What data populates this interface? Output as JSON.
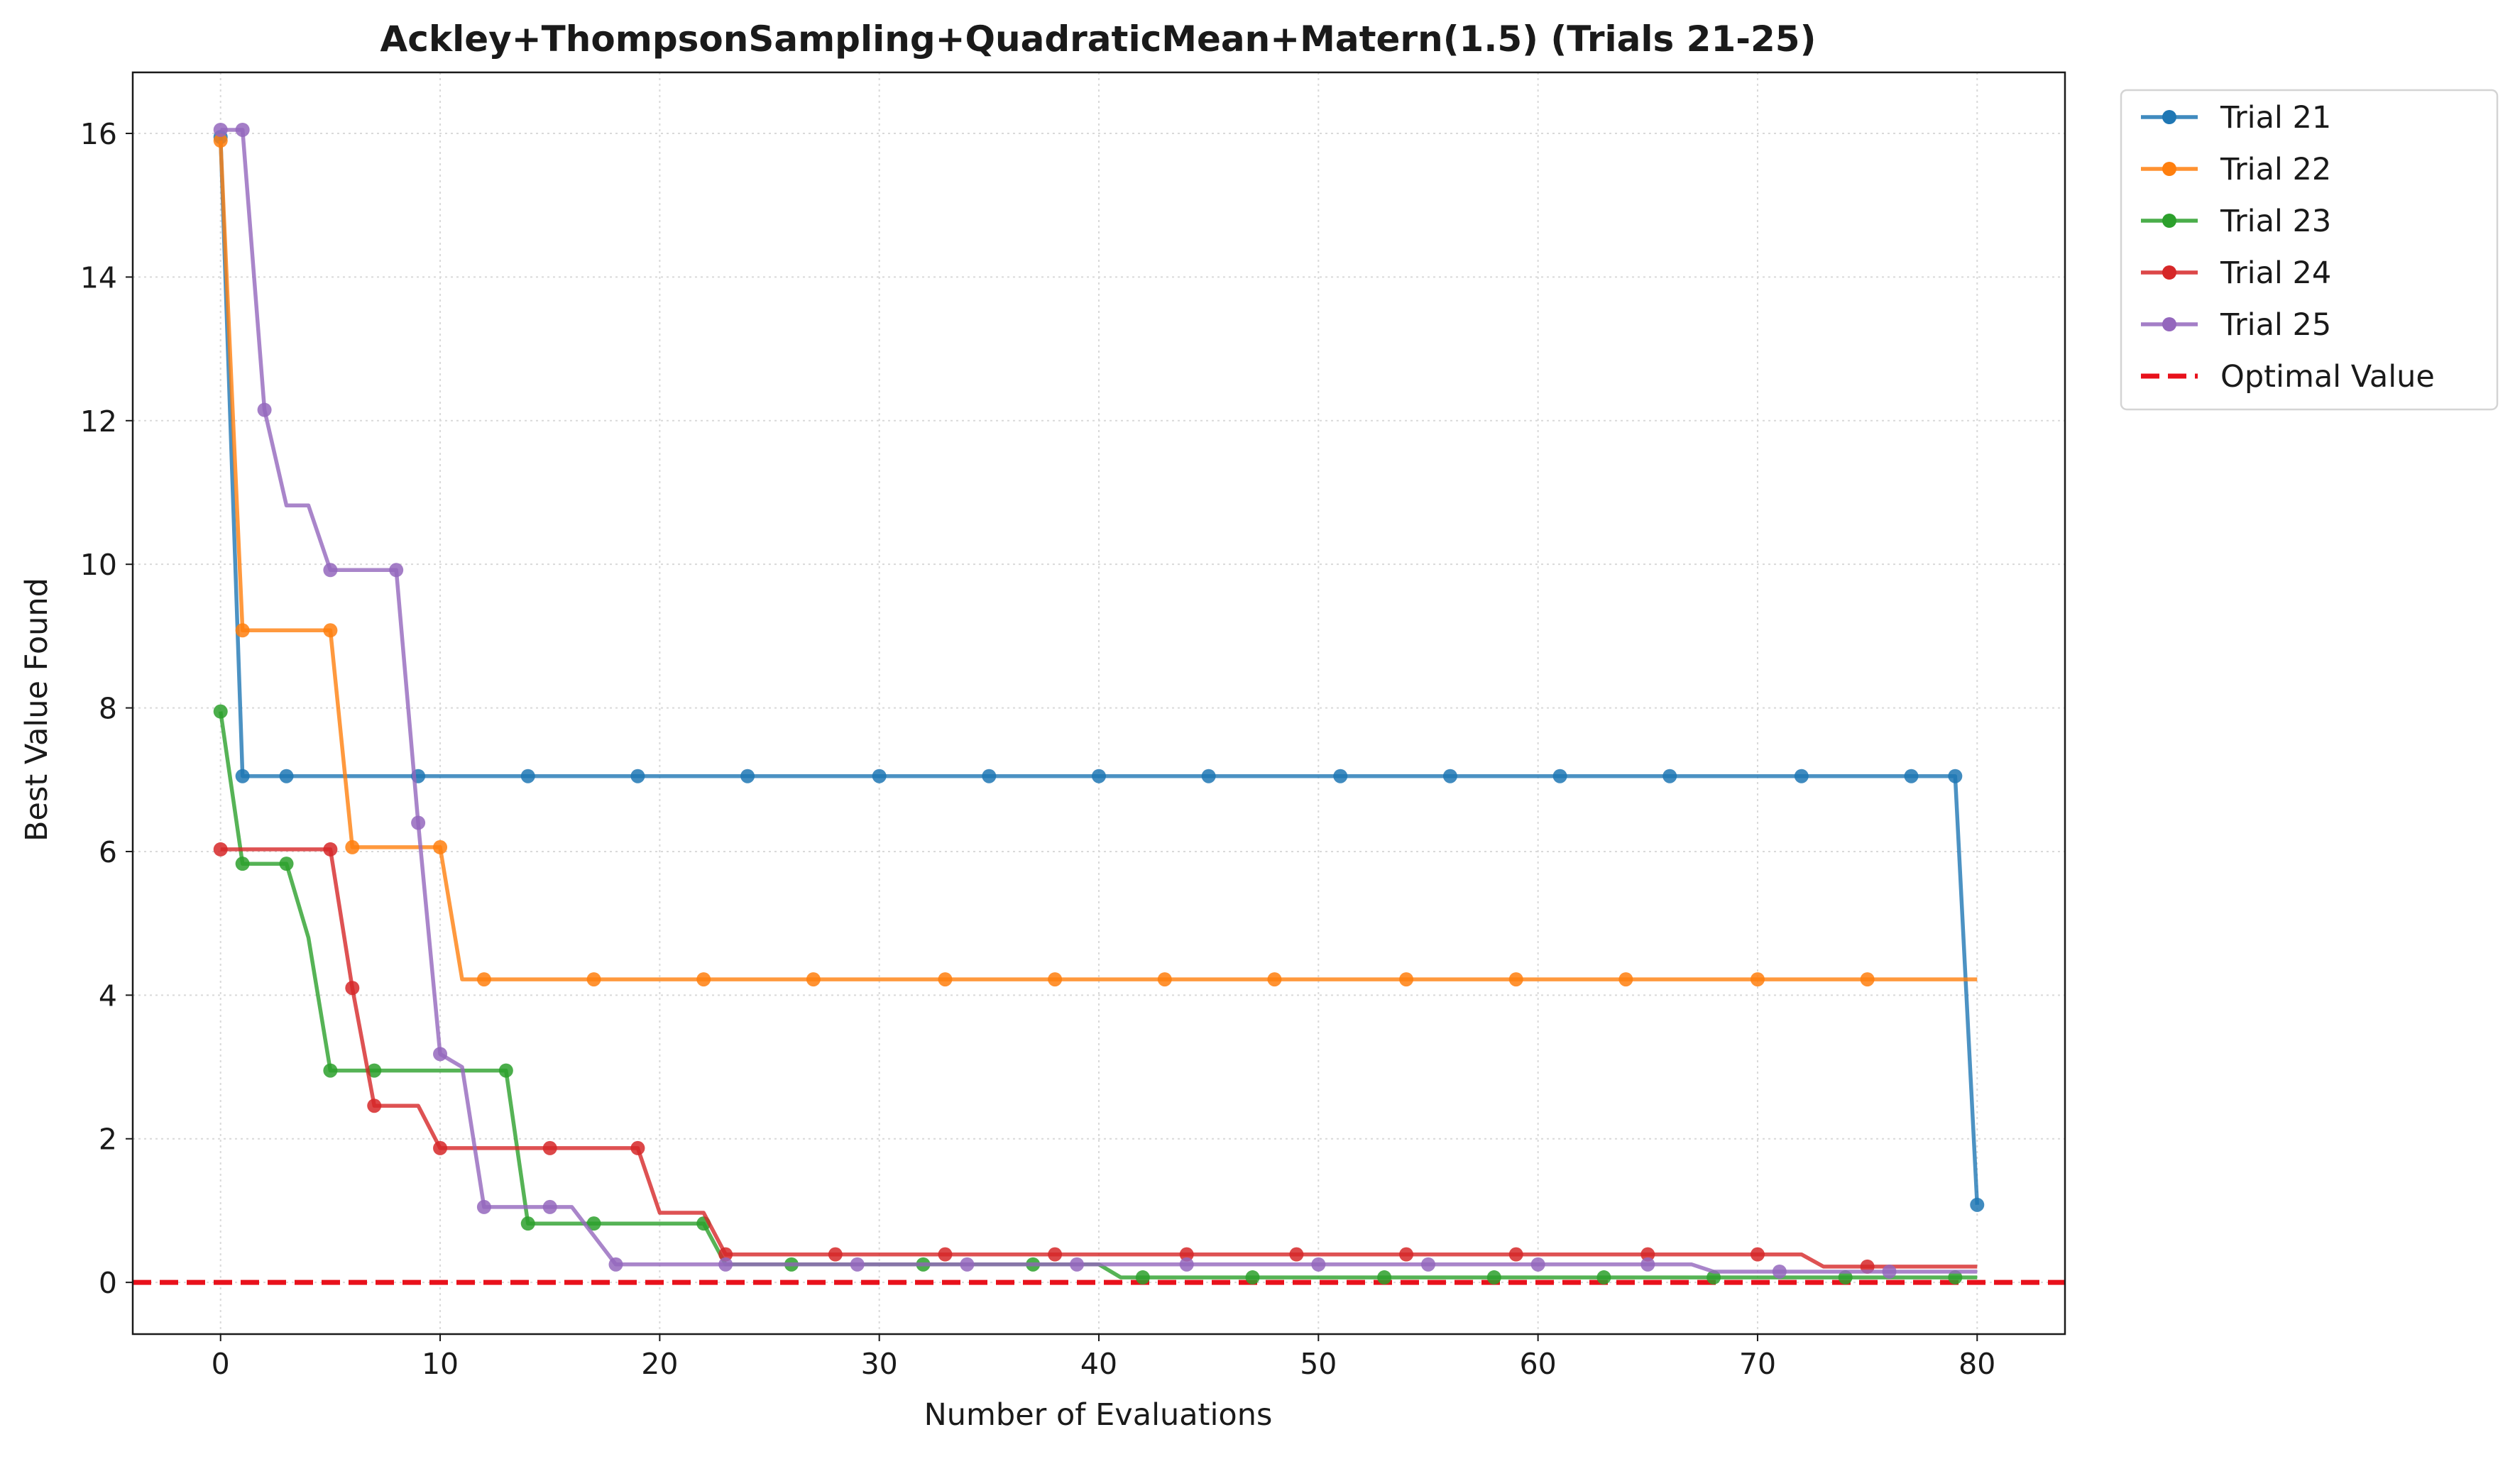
{
  "chart_data": {
    "type": "line",
    "title": "Ackley+ThompsonSampling+QuadraticMean+Matern(1.5) (Trials 21-25)",
    "xlabel": "Number of Evaluations",
    "ylabel": "Best Value Found",
    "xlim": [
      -4,
      84
    ],
    "ylim": [
      -0.72,
      16.85
    ],
    "xticks": [
      0,
      10,
      20,
      30,
      40,
      50,
      60,
      70,
      80
    ],
    "yticks": [
      0,
      2,
      4,
      6,
      8,
      10,
      12,
      14,
      16
    ],
    "grid": true,
    "legend_position": "outside-top-right",
    "reference_line": {
      "name": "Optimal Value",
      "y": 0,
      "color": "#e8111b",
      "style": "dashed"
    },
    "series": [
      {
        "name": "Trial 21",
        "color": "#1f77b4",
        "points": [
          [
            0,
            15.95
          ],
          [
            1,
            7.05
          ],
          [
            80,
            7.05
          ]
        ],
        "extra_points": [
          [
            79,
            7.05
          ],
          [
            80,
            1.08
          ]
        ],
        "markers": [
          0,
          1,
          3,
          9,
          14,
          19,
          24,
          30,
          35,
          40,
          45,
          51,
          56,
          61,
          66,
          72,
          77,
          79,
          80
        ]
      },
      {
        "name": "Trial 22",
        "color": "#ff7f0e",
        "points": [
          [
            0,
            15.9
          ],
          [
            1,
            9.08
          ],
          [
            5,
            9.08
          ],
          [
            6,
            6.06
          ],
          [
            10,
            6.06
          ],
          [
            11,
            4.22
          ],
          [
            80,
            4.22
          ]
        ],
        "markers": [
          0,
          1,
          5,
          6,
          10,
          12,
          17,
          22,
          27,
          33,
          38,
          43,
          48,
          54,
          59,
          64,
          70,
          75
        ]
      },
      {
        "name": "Trial 23",
        "color": "#2ca02c",
        "points": [
          [
            0,
            7.95
          ],
          [
            1,
            5.83
          ],
          [
            3,
            5.83
          ],
          [
            4,
            4.8
          ],
          [
            5,
            2.95
          ],
          [
            13,
            2.95
          ],
          [
            14,
            0.82
          ],
          [
            22,
            0.82
          ],
          [
            23,
            0.25
          ],
          [
            40,
            0.25
          ],
          [
            41,
            0.07
          ],
          [
            80,
            0.07
          ]
        ],
        "markers": [
          0,
          1,
          3,
          5,
          7,
          13,
          14,
          17,
          22,
          26,
          32,
          37,
          42,
          47,
          53,
          58,
          63,
          68,
          74,
          79
        ]
      },
      {
        "name": "Trial 24",
        "color": "#d62728",
        "points": [
          [
            0,
            6.03
          ],
          [
            5,
            6.03
          ],
          [
            6,
            4.1
          ],
          [
            7,
            2.46
          ],
          [
            9,
            2.46
          ],
          [
            10,
            1.87
          ],
          [
            19,
            1.87
          ],
          [
            20,
            0.97
          ],
          [
            22,
            0.97
          ],
          [
            23,
            0.39
          ],
          [
            72,
            0.39
          ],
          [
            73,
            0.22
          ],
          [
            80,
            0.22
          ]
        ],
        "markers": [
          0,
          5,
          6,
          7,
          10,
          15,
          19,
          23,
          28,
          33,
          38,
          44,
          49,
          54,
          59,
          65,
          70,
          75
        ]
      },
      {
        "name": "Trial 25",
        "color": "#9467bd",
        "points": [
          [
            0,
            16.05
          ],
          [
            1,
            16.05
          ],
          [
            2,
            12.15
          ],
          [
            3,
            10.82
          ],
          [
            4,
            10.82
          ],
          [
            5,
            9.92
          ],
          [
            8,
            9.92
          ],
          [
            9,
            6.4
          ],
          [
            10,
            3.18
          ],
          [
            11,
            3.0
          ],
          [
            12,
            1.05
          ],
          [
            16,
            1.05
          ],
          [
            18,
            0.25
          ],
          [
            67,
            0.25
          ],
          [
            68,
            0.15
          ],
          [
            80,
            0.15
          ]
        ],
        "markers": [
          0,
          1,
          2,
          5,
          8,
          9,
          10,
          12,
          15,
          18,
          23,
          29,
          34,
          39,
          44,
          50,
          55,
          60,
          65,
          71,
          76
        ]
      }
    ]
  }
}
